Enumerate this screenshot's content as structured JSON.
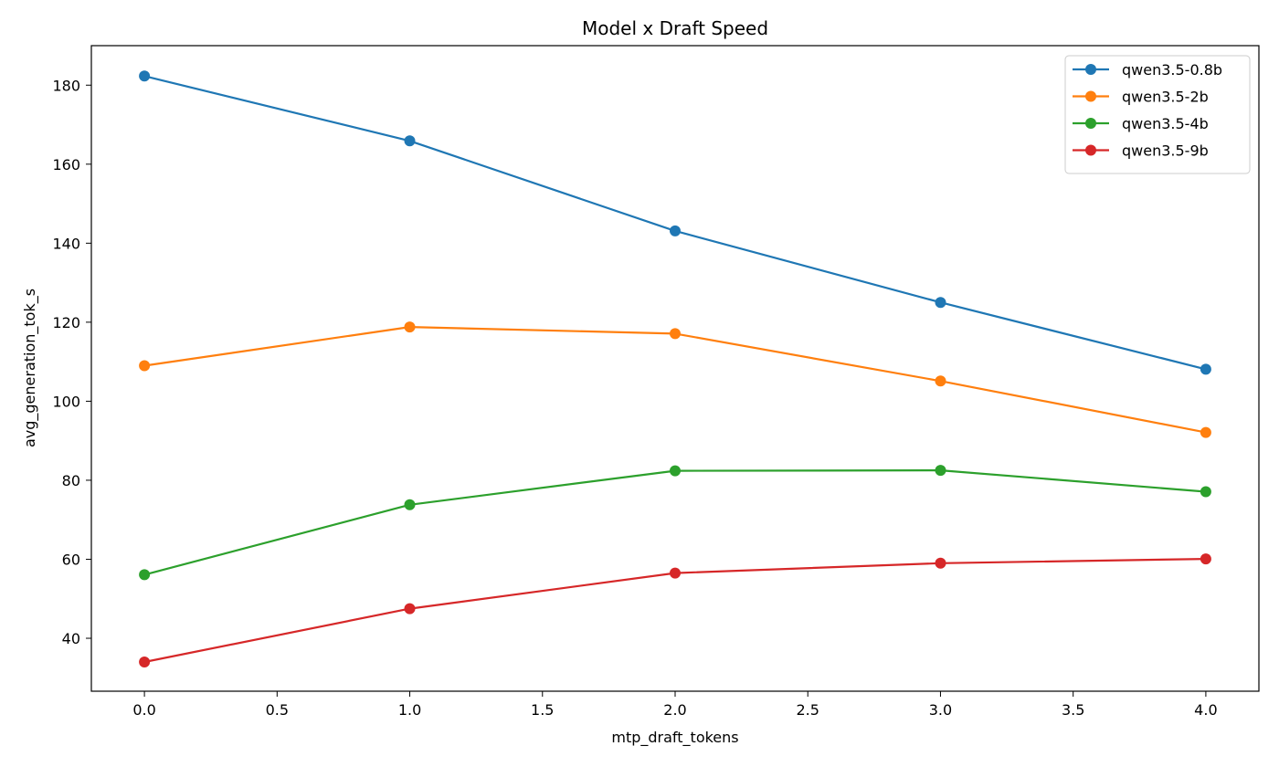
{
  "chart_data": {
    "type": "line",
    "title": "Model x Draft Speed",
    "xlabel": "mtp_draft_tokens",
    "ylabel": "avg_generation_tok_s",
    "x": [
      0,
      1,
      2,
      3,
      4
    ],
    "xlim": [
      -0.2,
      4.2
    ],
    "ylim": [
      26.6,
      190
    ],
    "xticks": [
      0.0,
      0.5,
      1.0,
      1.5,
      2.0,
      2.5,
      3.0,
      3.5,
      4.0
    ],
    "xtick_labels": [
      "0.0",
      "0.5",
      "1.0",
      "1.5",
      "2.0",
      "2.5",
      "3.0",
      "3.5",
      "4.0"
    ],
    "yticks": [
      40,
      60,
      80,
      100,
      120,
      140,
      160,
      180
    ],
    "ytick_labels": [
      "40",
      "60",
      "80",
      "100",
      "120",
      "140",
      "160",
      "180"
    ],
    "grid": false,
    "legend_position": "top-right",
    "series": [
      {
        "name": "qwen3.5-0.8b",
        "color": "#1f77b4",
        "values": [
          182.3,
          165.9,
          143.1,
          125.0,
          108.1
        ]
      },
      {
        "name": "qwen3.5-2b",
        "color": "#ff7f0e",
        "values": [
          109.0,
          118.8,
          117.1,
          105.1,
          92.1
        ]
      },
      {
        "name": "qwen3.5-4b",
        "color": "#2ca02c",
        "values": [
          56.1,
          73.8,
          82.4,
          82.5,
          77.1
        ]
      },
      {
        "name": "qwen3.5-9b",
        "color": "#d62728",
        "values": [
          34.0,
          47.5,
          56.5,
          59.0,
          60.1
        ]
      }
    ]
  }
}
